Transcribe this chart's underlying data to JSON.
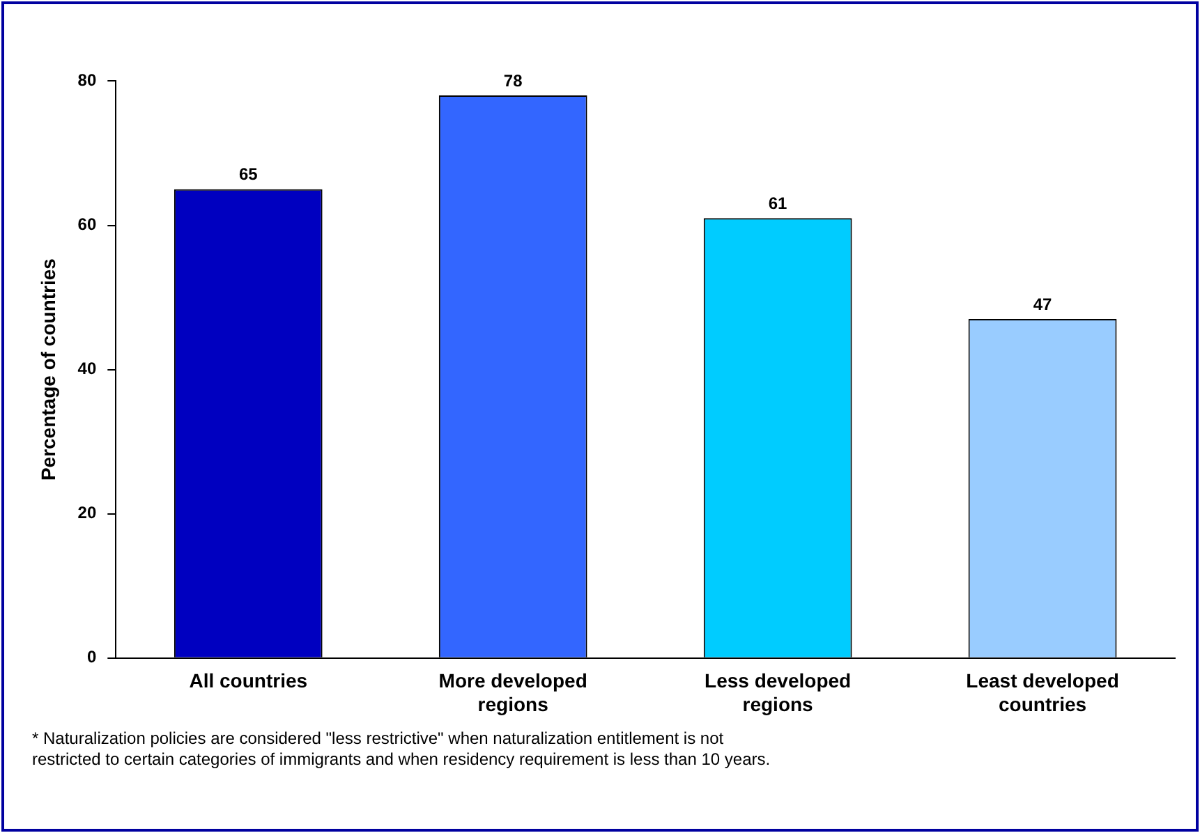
{
  "chart_data": {
    "type": "bar",
    "ylabel": "Percentage of countries",
    "categories": [
      "All countries",
      "More developed regions",
      "Less developed regions",
      "Least developed countries"
    ],
    "values": [
      65,
      78,
      61,
      47
    ],
    "colors": [
      "#0000c0",
      "#3366ff",
      "#00ccff",
      "#99ccff"
    ],
    "ylim": [
      0,
      80
    ],
    "yticks": [
      0,
      20,
      40,
      60,
      80
    ],
    "grid": false,
    "legend": false,
    "data_labels": true,
    "annotations": [
      "* Naturalization policies are considered \"less restrictive\" when naturalization entitlement is not restricted to certain categories of immigrants and when residency requirement is less than 10 years."
    ]
  }
}
